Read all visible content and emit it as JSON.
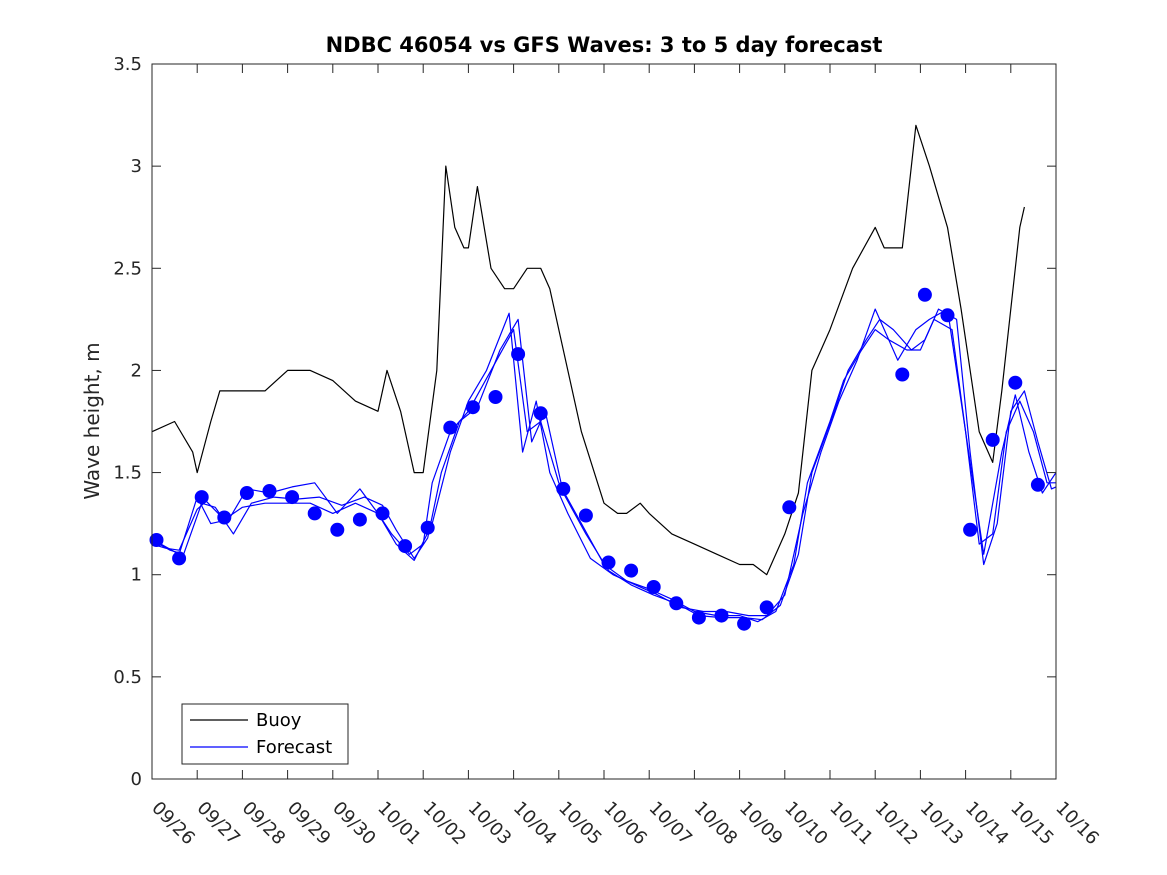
{
  "chart_data": {
    "type": "line",
    "title": "NDBC 46054 vs GFS Waves: 3 to 5 day forecast",
    "xlabel": "",
    "ylabel": "Wave height, m",
    "x_unit": "days since 09/26 00:00",
    "xlim": [
      0,
      20
    ],
    "ylim": [
      0,
      3.5
    ],
    "y_ticks": [
      "0",
      "0.5",
      "1",
      "1.5",
      "2",
      "2.5",
      "3",
      "3.5"
    ],
    "x_tick_labels": [
      "09/26",
      "09/27",
      "09/28",
      "09/29",
      "09/30",
      "10/01",
      "10/02",
      "10/03",
      "10/04",
      "10/05",
      "10/06",
      "10/07",
      "10/08",
      "10/09",
      "10/10",
      "10/11",
      "10/12",
      "10/13",
      "10/14",
      "10/15",
      "10/16"
    ],
    "legend": {
      "location": "bottom-left",
      "entries": [
        "Buoy",
        "Forecast"
      ]
    },
    "colors": {
      "buoy": "#000000",
      "forecast": "#0000ff",
      "marker": "#0000ff",
      "axes": "#262626"
    },
    "series": [
      {
        "name": "Buoy",
        "x": [
          0.0,
          0.5,
          0.9,
          1.0,
          1.3,
          1.5,
          2.0,
          2.5,
          3.0,
          3.5,
          4.0,
          4.5,
          5.0,
          5.2,
          5.5,
          5.8,
          6.0,
          6.3,
          6.5,
          6.7,
          6.9,
          7.0,
          7.2,
          7.5,
          7.8,
          8.0,
          8.3,
          8.6,
          8.8,
          9.0,
          9.5,
          10.0,
          10.3,
          10.5,
          10.8,
          11.0,
          11.5,
          12.0,
          12.5,
          13.0,
          13.3,
          13.6,
          14.0,
          14.3,
          14.6,
          14.8,
          15.0,
          15.5,
          16.0,
          16.2,
          16.6,
          16.9,
          17.2,
          17.6,
          17.9,
          18.3,
          18.6,
          18.8,
          19.0,
          19.2,
          19.3
        ],
        "values": [
          1.7,
          1.75,
          1.6,
          1.5,
          1.75,
          1.9,
          1.9,
          1.9,
          2.0,
          2.0,
          1.95,
          1.85,
          1.8,
          2.0,
          1.8,
          1.5,
          1.5,
          2.0,
          3.0,
          2.7,
          2.6,
          2.6,
          2.9,
          2.5,
          2.4,
          2.4,
          2.5,
          2.5,
          2.4,
          2.2,
          1.7,
          1.35,
          1.3,
          1.3,
          1.35,
          1.3,
          1.2,
          1.15,
          1.1,
          1.05,
          1.05,
          1.0,
          1.2,
          1.4,
          2.0,
          2.1,
          2.2,
          2.5,
          2.7,
          2.6,
          2.6,
          3.2,
          3.0,
          2.7,
          2.3,
          1.7,
          1.55,
          1.9,
          2.3,
          2.7,
          2.8
        ]
      },
      {
        "name": "Forecast",
        "x": [
          0.0,
          0.3,
          0.6,
          1.0,
          1.2,
          1.6,
          2.0,
          2.5,
          3.0,
          3.5,
          4.0,
          4.5,
          5.0,
          5.3,
          5.7,
          6.0,
          6.2,
          6.6,
          7.0,
          7.5,
          8.0,
          8.3,
          8.6,
          9.0,
          9.5,
          10.0,
          10.5,
          11.0,
          11.5,
          12.0,
          12.5,
          13.0,
          13.4,
          13.8,
          14.2,
          14.5,
          15.0,
          15.3,
          15.7,
          16.0,
          16.3,
          16.7,
          17.0,
          17.3,
          17.7,
          18.0,
          18.3,
          18.6,
          18.9,
          19.2,
          19.5,
          19.8,
          20.0
        ],
        "values": [
          1.15,
          1.13,
          1.12,
          1.32,
          1.36,
          1.27,
          1.33,
          1.35,
          1.35,
          1.35,
          1.3,
          1.35,
          1.3,
          1.2,
          1.1,
          1.15,
          1.45,
          1.7,
          1.8,
          2.0,
          2.2,
          1.7,
          1.75,
          1.45,
          1.25,
          1.05,
          0.97,
          0.93,
          0.88,
          0.82,
          0.8,
          0.8,
          0.77,
          0.82,
          1.05,
          1.45,
          1.75,
          1.95,
          2.1,
          2.2,
          2.15,
          2.1,
          2.1,
          2.25,
          2.2,
          1.7,
          1.15,
          1.2,
          1.7,
          1.85,
          1.7,
          1.45,
          1.45
        ]
      },
      {
        "name": "Forecast",
        "x": [
          0.0,
          0.4,
          0.7,
          1.1,
          1.4,
          1.8,
          2.2,
          2.7,
          3.2,
          3.7,
          4.2,
          4.7,
          5.1,
          5.4,
          5.8,
          6.1,
          6.4,
          6.8,
          7.2,
          7.7,
          8.1,
          8.4,
          8.7,
          9.1,
          9.6,
          10.1,
          10.6,
          11.1,
          11.6,
          12.1,
          12.6,
          13.1,
          13.5,
          13.9,
          14.3,
          14.6,
          15.1,
          15.4,
          15.8,
          16.1,
          16.4,
          16.8,
          17.1,
          17.4,
          17.8,
          18.1,
          18.4,
          18.7,
          19.0,
          19.3,
          19.6,
          19.9,
          20.0
        ],
        "values": [
          1.17,
          1.12,
          1.1,
          1.35,
          1.33,
          1.2,
          1.35,
          1.38,
          1.37,
          1.38,
          1.34,
          1.38,
          1.34,
          1.22,
          1.08,
          1.18,
          1.5,
          1.75,
          1.82,
          2.1,
          2.25,
          1.65,
          1.8,
          1.4,
          1.2,
          1.02,
          0.95,
          0.9,
          0.86,
          0.8,
          0.79,
          0.79,
          0.78,
          0.85,
          1.1,
          1.5,
          1.8,
          2.0,
          2.15,
          2.25,
          2.2,
          2.1,
          2.15,
          2.3,
          2.25,
          1.6,
          1.05,
          1.25,
          1.8,
          1.9,
          1.65,
          1.42,
          1.43
        ]
      },
      {
        "name": "Forecast",
        "x": [
          0.2,
          0.6,
          1.0,
          1.3,
          1.7,
          2.1,
          2.6,
          3.1,
          3.6,
          4.1,
          4.6,
          5.0,
          5.4,
          5.8,
          6.2,
          6.6,
          7.0,
          7.4,
          7.9,
          8.2,
          8.5,
          8.8,
          9.2,
          9.7,
          10.2,
          10.7,
          11.2,
          11.7,
          12.2,
          12.7,
          13.2,
          13.6,
          14.0,
          14.4,
          14.8,
          15.2,
          15.6,
          16.0,
          16.5,
          16.9,
          17.2,
          17.6,
          18.0,
          18.4,
          18.8,
          19.1,
          19.4,
          19.7,
          20.0
        ],
        "values": [
          1.15,
          1.1,
          1.38,
          1.25,
          1.27,
          1.42,
          1.4,
          1.43,
          1.45,
          1.3,
          1.42,
          1.3,
          1.15,
          1.07,
          1.25,
          1.6,
          1.85,
          2.0,
          2.28,
          1.6,
          1.85,
          1.5,
          1.3,
          1.08,
          1.0,
          0.95,
          0.9,
          0.84,
          0.82,
          0.82,
          0.8,
          0.8,
          0.9,
          1.3,
          1.6,
          1.85,
          2.05,
          2.3,
          2.05,
          2.2,
          2.25,
          2.3,
          1.7,
          1.1,
          1.6,
          1.88,
          1.6,
          1.4,
          1.5
        ]
      }
    ],
    "markers": {
      "name": "Forecast points",
      "x": [
        0.1,
        0.6,
        1.1,
        1.6,
        2.1,
        2.6,
        3.1,
        3.6,
        4.1,
        4.6,
        5.1,
        5.6,
        6.1,
        6.6,
        7.1,
        7.6,
        8.1,
        8.6,
        9.1,
        9.6,
        10.1,
        10.6,
        11.1,
        11.6,
        12.1,
        12.6,
        13.1,
        13.6,
        14.1,
        14.6,
        15.1,
        15.6,
        16.1,
        16.6,
        17.1,
        17.6,
        18.1,
        18.6,
        19.1,
        19.6
      ],
      "values": [
        1.17,
        1.08,
        1.38,
        1.28,
        1.4,
        1.41,
        1.38,
        1.3,
        1.22,
        1.27,
        1.3,
        1.14,
        1.23,
        1.72,
        1.82,
        1.87,
        2.08,
        1.79,
        1.42,
        1.29,
        1.06,
        1.02,
        0.94,
        0.86,
        0.79,
        0.8,
        0.76,
        0.84,
        1.33,
        null,
        null,
        null,
        null,
        1.98,
        2.37,
        2.27,
        1.22,
        1.66,
        1.94,
        1.44
      ]
    }
  }
}
